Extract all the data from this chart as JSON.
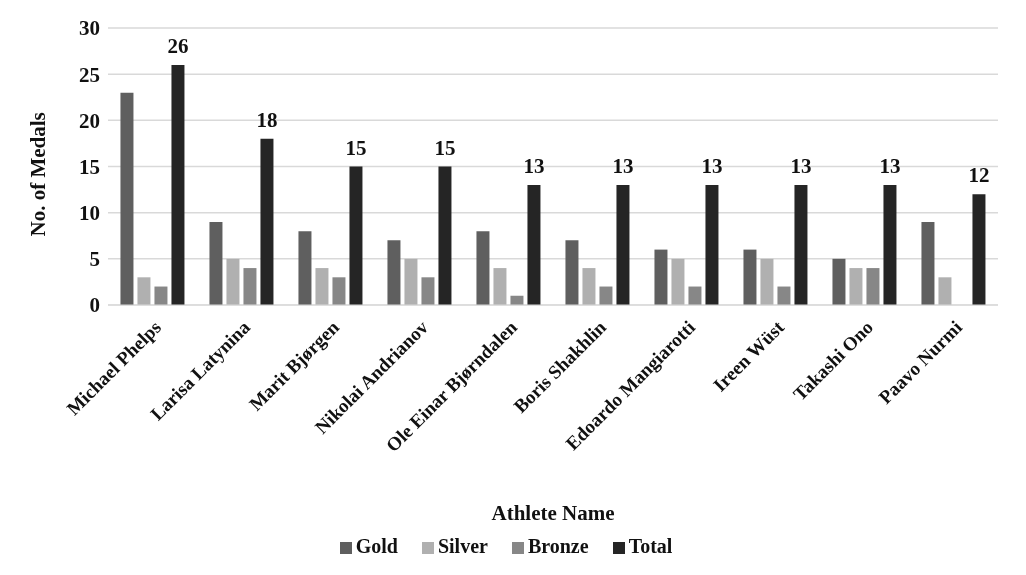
{
  "chart_data": {
    "type": "bar",
    "xlabel": "Athlete Name",
    "ylabel": "No. of Medals",
    "categories": [
      "Michael Phelps",
      "Larisa Latynina",
      "Marit Bjørgen",
      "Nikolai Andrianov",
      "Ole Einar Bjørndalen",
      "Boris Shakhlin",
      "Edoardo Mangiarotti",
      "Ireen Wüst",
      "Takashi Ono",
      "Paavo Nurmi"
    ],
    "series": [
      {
        "name": "Gold",
        "color": "#5f5f5f",
        "values": [
          23,
          9,
          8,
          7,
          8,
          7,
          6,
          6,
          5,
          9
        ]
      },
      {
        "name": "Silver",
        "color": "#b0b0b0",
        "values": [
          3,
          5,
          4,
          5,
          4,
          4,
          5,
          5,
          4,
          3
        ]
      },
      {
        "name": "Bronze",
        "color": "#878787",
        "values": [
          2,
          4,
          3,
          3,
          1,
          2,
          2,
          2,
          4,
          0
        ]
      },
      {
        "name": "Total",
        "color": "#252525",
        "values": [
          26,
          18,
          15,
          15,
          13,
          13,
          13,
          13,
          13,
          12
        ],
        "value_labels": [
          "26",
          "18",
          "15",
          "15",
          "13",
          "13",
          "13",
          "13",
          "13",
          "12"
        ]
      }
    ],
    "ylim": [
      0,
      30
    ],
    "yticks": [
      0,
      5,
      10,
      15,
      20,
      25,
      30
    ],
    "grid": "y",
    "legend": "bottom"
  }
}
